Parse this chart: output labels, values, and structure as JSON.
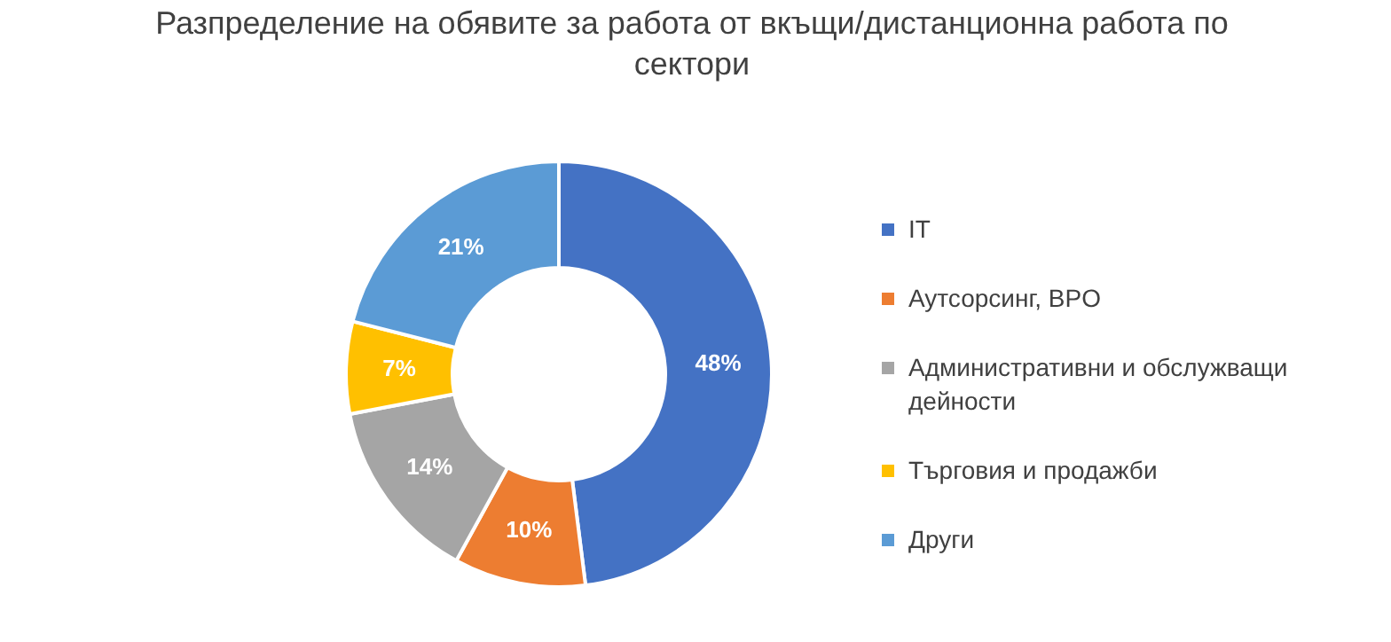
{
  "chart_data": {
    "type": "donut",
    "title": "Разпределение на обявите за работа от вкъщи/дистанционна работа по сектори",
    "categories": [
      "IT",
      "Аутсорсинг, BPO",
      "Административни и обслужващи дейности",
      "Търговия и продажби",
      "Други"
    ],
    "values": [
      48,
      10,
      14,
      7,
      21
    ],
    "colors": [
      "#4472c4",
      "#ed7d31",
      "#a5a5a5",
      "#ffc000",
      "#5b9bd5"
    ],
    "value_labels": [
      "48%",
      "10%",
      "14%",
      "7%",
      "21%"
    ],
    "legend": "right"
  }
}
